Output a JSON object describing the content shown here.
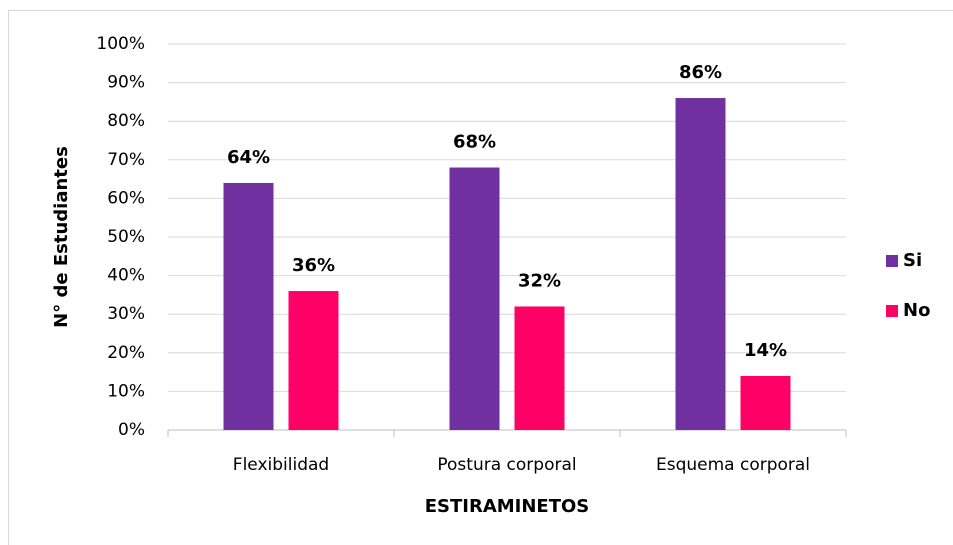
{
  "chart_data": {
    "type": "bar",
    "x_label": "ESTIRAMINETOS",
    "y_label": "N° de Estudiantes",
    "categories": [
      "Flexibilidad",
      "Postura corporal",
      "Esquema corporal"
    ],
    "series": [
      {
        "name": "Si",
        "color": "#7030a0",
        "values": [
          64,
          68,
          86
        ],
        "value_labels": [
          "64%",
          "68%",
          "86%"
        ]
      },
      {
        "name": "No",
        "color": "#ff0066",
        "values": [
          36,
          32,
          14
        ],
        "value_labels": [
          "36%",
          "32%",
          "14%"
        ]
      }
    ],
    "ylim": [
      0,
      100
    ],
    "yticks": [
      {
        "value": 0,
        "label": "0%"
      },
      {
        "value": 10,
        "label": "10%"
      },
      {
        "value": 20,
        "label": "20%"
      },
      {
        "value": 30,
        "label": "30%"
      },
      {
        "value": 40,
        "label": "40%"
      },
      {
        "value": 50,
        "label": "50%"
      },
      {
        "value": 60,
        "label": "60%"
      },
      {
        "value": 70,
        "label": "70%"
      },
      {
        "value": 80,
        "label": "80%"
      },
      {
        "value": 90,
        "label": "90%"
      },
      {
        "value": 100,
        "label": "100%"
      }
    ],
    "grid": true,
    "legend": "right"
  }
}
